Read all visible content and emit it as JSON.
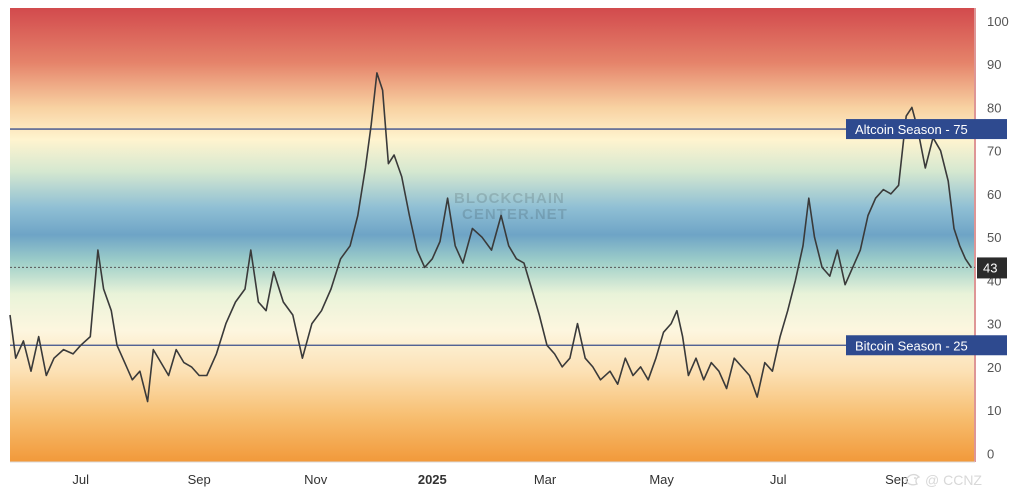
{
  "watermark": {
    "line1": "BLOCKCHAIN",
    "line2": "CENTER.NET"
  },
  "credit": {
    "text": "@ CCNZ",
    "icon": "bird-logo-icon"
  },
  "colors": {
    "line": "#3a3a3a",
    "threshold_line": "#3b4f8c",
    "badge": "#2e4a8f",
    "current_badge": "#2b2b2b",
    "gradient_top": "#d24a4d",
    "gradient_mid": "#6ea4c6",
    "gradient_bottom": "#f2993a"
  },
  "chart_data": {
    "type": "line",
    "title": "",
    "xlabel": "",
    "ylabel": "",
    "ylim": [
      -2,
      103
    ],
    "y_ticks": [
      "0",
      "10",
      "20",
      "30",
      "40",
      "50",
      "60",
      "70",
      "80",
      "90",
      "100"
    ],
    "x_ticks": [
      {
        "label": "Jul",
        "date": "2024-07-01"
      },
      {
        "label": "Sep",
        "date": "2024-09-01"
      },
      {
        "label": "Nov",
        "date": "2024-11-01"
      },
      {
        "label": "2025",
        "date": "2025-01-01",
        "bold": true
      },
      {
        "label": "Mar",
        "date": "2025-03-01"
      },
      {
        "label": "May",
        "date": "2025-05-01"
      },
      {
        "label": "Jul",
        "date": "2025-07-01"
      },
      {
        "label": "Sep",
        "date": "2025-09-01"
      }
    ],
    "x_range": [
      "2024-05-25",
      "2025-10-12"
    ],
    "thresholds": [
      {
        "label": "Altcoin Season",
        "value": 75,
        "marker": "▲",
        "text": "Altcoin Season - 75"
      },
      {
        "label": "Bitcoin Season",
        "value": 25,
        "marker": "▼",
        "text": "Bitcoin Season - 25"
      }
    ],
    "current_value": {
      "value": 43,
      "text": "43"
    },
    "series": [
      {
        "points": [
          [
            "2024-05-25",
            32
          ],
          [
            "2024-05-28",
            22
          ],
          [
            "2024-06-01",
            26
          ],
          [
            "2024-06-05",
            19
          ],
          [
            "2024-06-09",
            27
          ],
          [
            "2024-06-13",
            18
          ],
          [
            "2024-06-17",
            22
          ],
          [
            "2024-06-22",
            24
          ],
          [
            "2024-06-27",
            23
          ],
          [
            "2024-07-01",
            25
          ],
          [
            "2024-07-06",
            27
          ],
          [
            "2024-07-10",
            47
          ],
          [
            "2024-07-13",
            38
          ],
          [
            "2024-07-17",
            33
          ],
          [
            "2024-07-20",
            25
          ],
          [
            "2024-07-24",
            21
          ],
          [
            "2024-07-28",
            17
          ],
          [
            "2024-08-01",
            19
          ],
          [
            "2024-08-05",
            12
          ],
          [
            "2024-08-08",
            24
          ],
          [
            "2024-08-12",
            21
          ],
          [
            "2024-08-16",
            18
          ],
          [
            "2024-08-20",
            24
          ],
          [
            "2024-08-24",
            21
          ],
          [
            "2024-08-28",
            20
          ],
          [
            "2024-09-01",
            18
          ],
          [
            "2024-09-05",
            18
          ],
          [
            "2024-09-10",
            23
          ],
          [
            "2024-09-15",
            30
          ],
          [
            "2024-09-20",
            35
          ],
          [
            "2024-09-25",
            38
          ],
          [
            "2024-09-28",
            47
          ],
          [
            "2024-10-02",
            35
          ],
          [
            "2024-10-06",
            33
          ],
          [
            "2024-10-10",
            42
          ],
          [
            "2024-10-15",
            35
          ],
          [
            "2024-10-20",
            32
          ],
          [
            "2024-10-25",
            22
          ],
          [
            "2024-10-30",
            30
          ],
          [
            "2024-11-04",
            33
          ],
          [
            "2024-11-09",
            38
          ],
          [
            "2024-11-14",
            45
          ],
          [
            "2024-11-19",
            48
          ],
          [
            "2024-11-23",
            55
          ],
          [
            "2024-11-27",
            66
          ],
          [
            "2024-11-30",
            76
          ],
          [
            "2024-12-03",
            88
          ],
          [
            "2024-12-06",
            84
          ],
          [
            "2024-12-09",
            67
          ],
          [
            "2024-12-12",
            69
          ],
          [
            "2024-12-16",
            64
          ],
          [
            "2024-12-20",
            55
          ],
          [
            "2024-12-24",
            47
          ],
          [
            "2024-12-28",
            43
          ],
          [
            "2025-01-01",
            45
          ],
          [
            "2025-01-05",
            49
          ],
          [
            "2025-01-09",
            59
          ],
          [
            "2025-01-13",
            48
          ],
          [
            "2025-01-17",
            44
          ],
          [
            "2025-01-22",
            52
          ],
          [
            "2025-01-27",
            50
          ],
          [
            "2025-02-01",
            47
          ],
          [
            "2025-02-06",
            55
          ],
          [
            "2025-02-10",
            48
          ],
          [
            "2025-02-14",
            45
          ],
          [
            "2025-02-18",
            44
          ],
          [
            "2025-02-22",
            38
          ],
          [
            "2025-02-26",
            32
          ],
          [
            "2025-03-02",
            25
          ],
          [
            "2025-03-06",
            23
          ],
          [
            "2025-03-10",
            20
          ],
          [
            "2025-03-14",
            22
          ],
          [
            "2025-03-18",
            30
          ],
          [
            "2025-03-22",
            22
          ],
          [
            "2025-03-26",
            20
          ],
          [
            "2025-03-30",
            17
          ],
          [
            "2025-04-04",
            19
          ],
          [
            "2025-04-08",
            16
          ],
          [
            "2025-04-12",
            22
          ],
          [
            "2025-04-16",
            18
          ],
          [
            "2025-04-20",
            20
          ],
          [
            "2025-04-24",
            17
          ],
          [
            "2025-04-28",
            22
          ],
          [
            "2025-05-02",
            28
          ],
          [
            "2025-05-06",
            30
          ],
          [
            "2025-05-09",
            33
          ],
          [
            "2025-05-12",
            27
          ],
          [
            "2025-05-15",
            18
          ],
          [
            "2025-05-19",
            22
          ],
          [
            "2025-05-23",
            17
          ],
          [
            "2025-05-27",
            21
          ],
          [
            "2025-05-31",
            19
          ],
          [
            "2025-06-04",
            15
          ],
          [
            "2025-06-08",
            22
          ],
          [
            "2025-06-12",
            20
          ],
          [
            "2025-06-16",
            18
          ],
          [
            "2025-06-20",
            13
          ],
          [
            "2025-06-24",
            21
          ],
          [
            "2025-06-28",
            19
          ],
          [
            "2025-07-02",
            27
          ],
          [
            "2025-07-06",
            33
          ],
          [
            "2025-07-10",
            40
          ],
          [
            "2025-07-14",
            48
          ],
          [
            "2025-07-17",
            59
          ],
          [
            "2025-07-20",
            50
          ],
          [
            "2025-07-24",
            43
          ],
          [
            "2025-07-28",
            41
          ],
          [
            "2025-08-01",
            47
          ],
          [
            "2025-08-05",
            39
          ],
          [
            "2025-08-09",
            43
          ],
          [
            "2025-08-13",
            47
          ],
          [
            "2025-08-17",
            55
          ],
          [
            "2025-08-21",
            59
          ],
          [
            "2025-08-25",
            61
          ],
          [
            "2025-08-29",
            60
          ],
          [
            "2025-09-02",
            62
          ],
          [
            "2025-09-06",
            78
          ],
          [
            "2025-09-09",
            80
          ],
          [
            "2025-09-12",
            75
          ],
          [
            "2025-09-16",
            66
          ],
          [
            "2025-09-20",
            73
          ],
          [
            "2025-09-24",
            70
          ],
          [
            "2025-09-28",
            63
          ],
          [
            "2025-10-01",
            52
          ],
          [
            "2025-10-04",
            48
          ],
          [
            "2025-10-07",
            45
          ],
          [
            "2025-10-10",
            43
          ]
        ]
      }
    ]
  }
}
